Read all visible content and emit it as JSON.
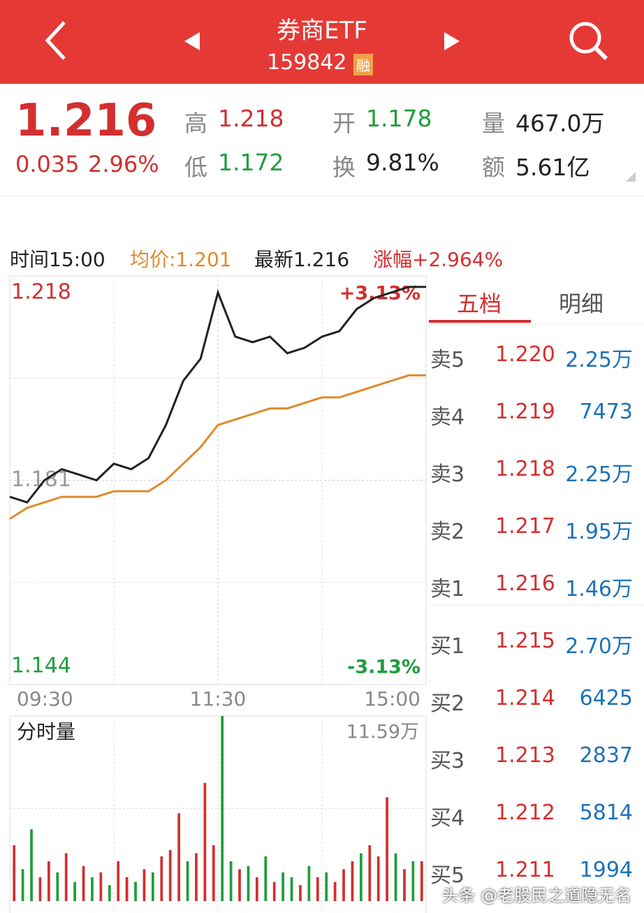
{
  "header": {
    "title": "券商ETF",
    "code": "159842",
    "badge": "融"
  },
  "quote": {
    "price": "1.216",
    "change": "0.035",
    "change_pct": "2.96%",
    "stats": [
      {
        "label": "高",
        "value": "1.218"
      },
      {
        "label": "开",
        "value": "1.178"
      },
      {
        "label": "量",
        "value": "467.0万"
      },
      {
        "label": "低",
        "value": "1.172"
      },
      {
        "label": "换",
        "value": "9.81%"
      },
      {
        "label": "额",
        "value": "5.61亿"
      }
    ]
  },
  "chart_info": {
    "time": "时间15:00",
    "avg": "均价:1.201",
    "latest": "最新1.216",
    "change": "涨幅+2.964%"
  },
  "chart_data": [
    {
      "type": "line",
      "x": [
        0,
        10,
        20,
        30,
        40,
        50,
        60,
        70,
        80,
        90,
        100,
        110,
        120,
        130,
        140,
        150,
        160,
        170,
        180,
        190,
        200,
        210,
        220,
        230,
        240
      ],
      "series": [
        {
          "name": "最新",
          "color": "#222222",
          "values": [
            1.178,
            1.177,
            1.181,
            1.183,
            1.182,
            1.181,
            1.184,
            1.183,
            1.185,
            1.191,
            1.199,
            1.203,
            1.215,
            1.207,
            1.206,
            1.207,
            1.204,
            1.205,
            1.207,
            1.208,
            1.212,
            1.214,
            1.215,
            1.216,
            1.216
          ]
        },
        {
          "name": "均价",
          "color": "#e08a2c",
          "values": [
            1.174,
            1.176,
            1.177,
            1.178,
            1.178,
            1.178,
            1.179,
            1.179,
            1.179,
            1.181,
            1.184,
            1.187,
            1.191,
            1.192,
            1.193,
            1.194,
            1.194,
            1.195,
            1.196,
            1.196,
            1.197,
            1.198,
            1.199,
            1.2,
            1.2
          ]
        }
      ],
      "xlim": [
        0,
        240
      ],
      "xticks": [
        {
          "value": 0,
          "label": "09:30"
        },
        {
          "value": 120,
          "label": "11:30"
        },
        {
          "value": 240,
          "label": "15:00"
        }
      ],
      "ylim": [
        1.144,
        1.218
      ],
      "yticks": [
        1.144,
        1.181,
        1.218
      ],
      "y2lim": [
        -3.13,
        3.13
      ],
      "y2ticks": [
        {
          "value": -3.13,
          "label": "-3.13%"
        },
        {
          "value": 3.13,
          "label": "+3.13%"
        }
      ]
    },
    {
      "type": "bar",
      "title": "分时量",
      "values": [
        3.5,
        2.0,
        4.5,
        1.5,
        2.5,
        1.8,
        3.0,
        1.2,
        2.2,
        1.5,
        1.8,
        1.0,
        2.5,
        1.5,
        1.2,
        2.0,
        1.8,
        2.8,
        3.2,
        5.5,
        2.5,
        3.0,
        7.4,
        3.5,
        11.59,
        2.5,
        2.0,
        2.2,
        1.5,
        2.8,
        1.2,
        1.8,
        1.5,
        1.0,
        2.2,
        1.5,
        1.8,
        1.2,
        2.0,
        2.5,
        3.0,
        3.5,
        2.8,
        6.5,
        3.0,
        2.0,
        2.5,
        2.5
      ],
      "colors": [
        "#d32f2f",
        "#1e9e3a",
        "#1e9e3a",
        "#d32f2f",
        "#d32f2f",
        "#1e9e3a",
        "#d32f2f",
        "#1e9e3a",
        "#d32f2f",
        "#1e9e3a",
        "#d32f2f",
        "#1e9e3a",
        "#d32f2f",
        "#d32f2f",
        "#1e9e3a",
        "#d32f2f",
        "#1e9e3a",
        "#d32f2f",
        "#d32f2f",
        "#d32f2f",
        "#1e9e3a",
        "#d32f2f",
        "#d32f2f",
        "#d32f2f",
        "#1e9e3a",
        "#1e9e3a",
        "#d32f2f",
        "#1e9e3a",
        "#d32f2f",
        "#1e9e3a",
        "#d32f2f",
        "#1e9e3a",
        "#1e9e3a",
        "#d32f2f",
        "#1e9e3a",
        "#d32f2f",
        "#1e9e3a",
        "#d32f2f",
        "#d32f2f",
        "#d32f2f",
        "#1e9e3a",
        "#d32f2f",
        "#d32f2f",
        "#d32f2f",
        "#1e9e3a",
        "#d32f2f",
        "#1e9e3a",
        "#d32f2f"
      ],
      "ylim": [
        0,
        11.59
      ],
      "yticks": [
        {
          "value": 11.59,
          "label": "11.59万"
        }
      ]
    }
  ],
  "order_book": {
    "tabs": [
      "五档",
      "明细"
    ],
    "rows": [
      [
        "卖5",
        "1.220",
        "2.25万"
      ],
      [
        "卖4",
        "1.219",
        "7473"
      ],
      [
        "卖3",
        "1.218",
        "2.25万"
      ],
      [
        "卖2",
        "1.217",
        "1.95万"
      ],
      [
        "卖1",
        "1.216",
        "1.46万"
      ],
      [
        "买1",
        "1.215",
        "2.70万"
      ],
      [
        "买2",
        "1.214",
        "6425"
      ],
      [
        "买3",
        "1.213",
        "2837"
      ],
      [
        "买4",
        "1.212",
        "5814"
      ],
      [
        "买5",
        "1.211",
        "1994"
      ]
    ]
  },
  "watermark": "头条 @老股民之道隐无名"
}
